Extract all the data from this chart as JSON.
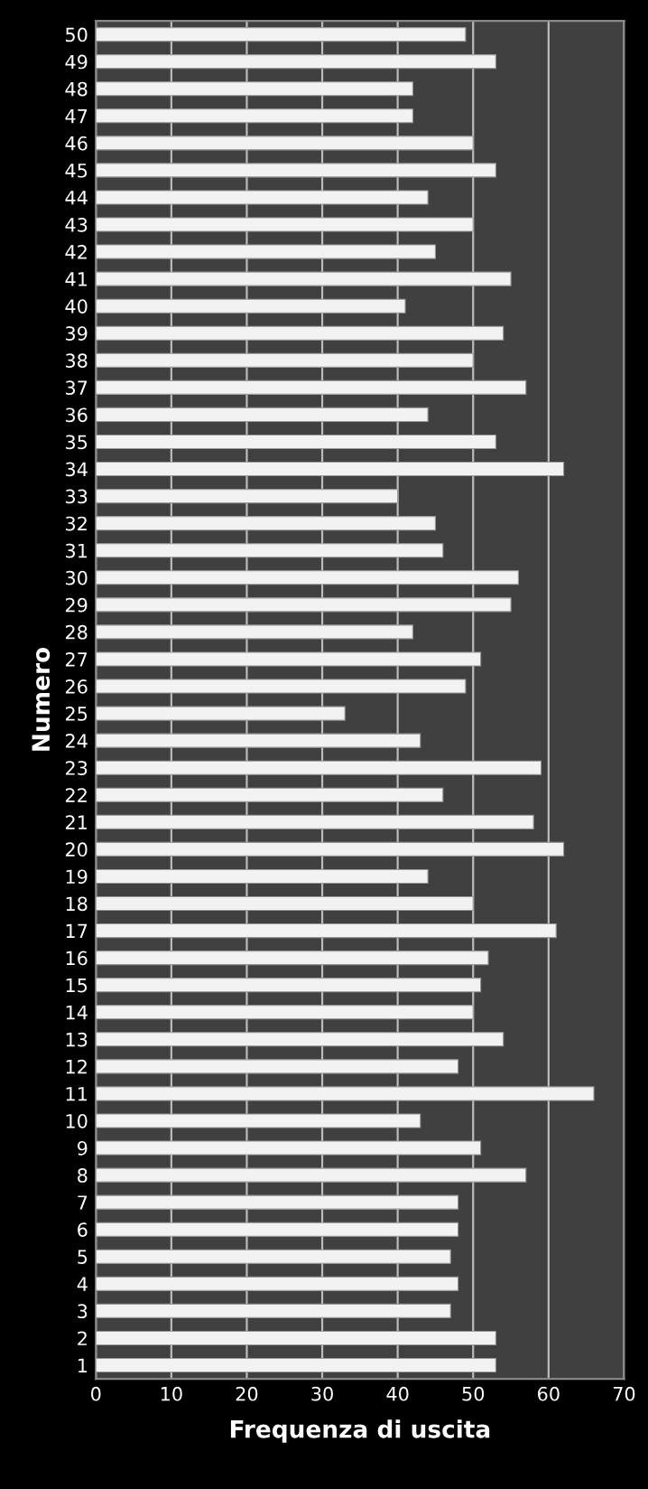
{
  "chart_data": {
    "type": "bar",
    "orientation": "horizontal",
    "xlabel": "Frequenza di uscita",
    "ylabel": "Numero",
    "categories": [
      "50",
      "49",
      "48",
      "47",
      "46",
      "45",
      "44",
      "43",
      "42",
      "41",
      "40",
      "39",
      "38",
      "37",
      "36",
      "35",
      "34",
      "33",
      "32",
      "31",
      "30",
      "29",
      "28",
      "27",
      "26",
      "25",
      "24",
      "23",
      "22",
      "21",
      "20",
      "19",
      "18",
      "17",
      "16",
      "15",
      "14",
      "13",
      "12",
      "11",
      "10",
      "9",
      "8",
      "7",
      "6",
      "5",
      "4",
      "3",
      "2",
      "1"
    ],
    "values": [
      49,
      53,
      42,
      42,
      50,
      53,
      44,
      50,
      45,
      55,
      41,
      54,
      50,
      57,
      44,
      53,
      62,
      40,
      45,
      46,
      56,
      55,
      42,
      51,
      49,
      33,
      43,
      59,
      46,
      58,
      62,
      44,
      50,
      61,
      52,
      51,
      50,
      54,
      48,
      66,
      43,
      51,
      57,
      48,
      48,
      47,
      48,
      47,
      53,
      53
    ],
    "color": "#f2f2f2",
    "xlim": [
      0,
      70
    ],
    "xticks": [
      0,
      10,
      20,
      30,
      40,
      50,
      60,
      70
    ],
    "grid": "x"
  }
}
